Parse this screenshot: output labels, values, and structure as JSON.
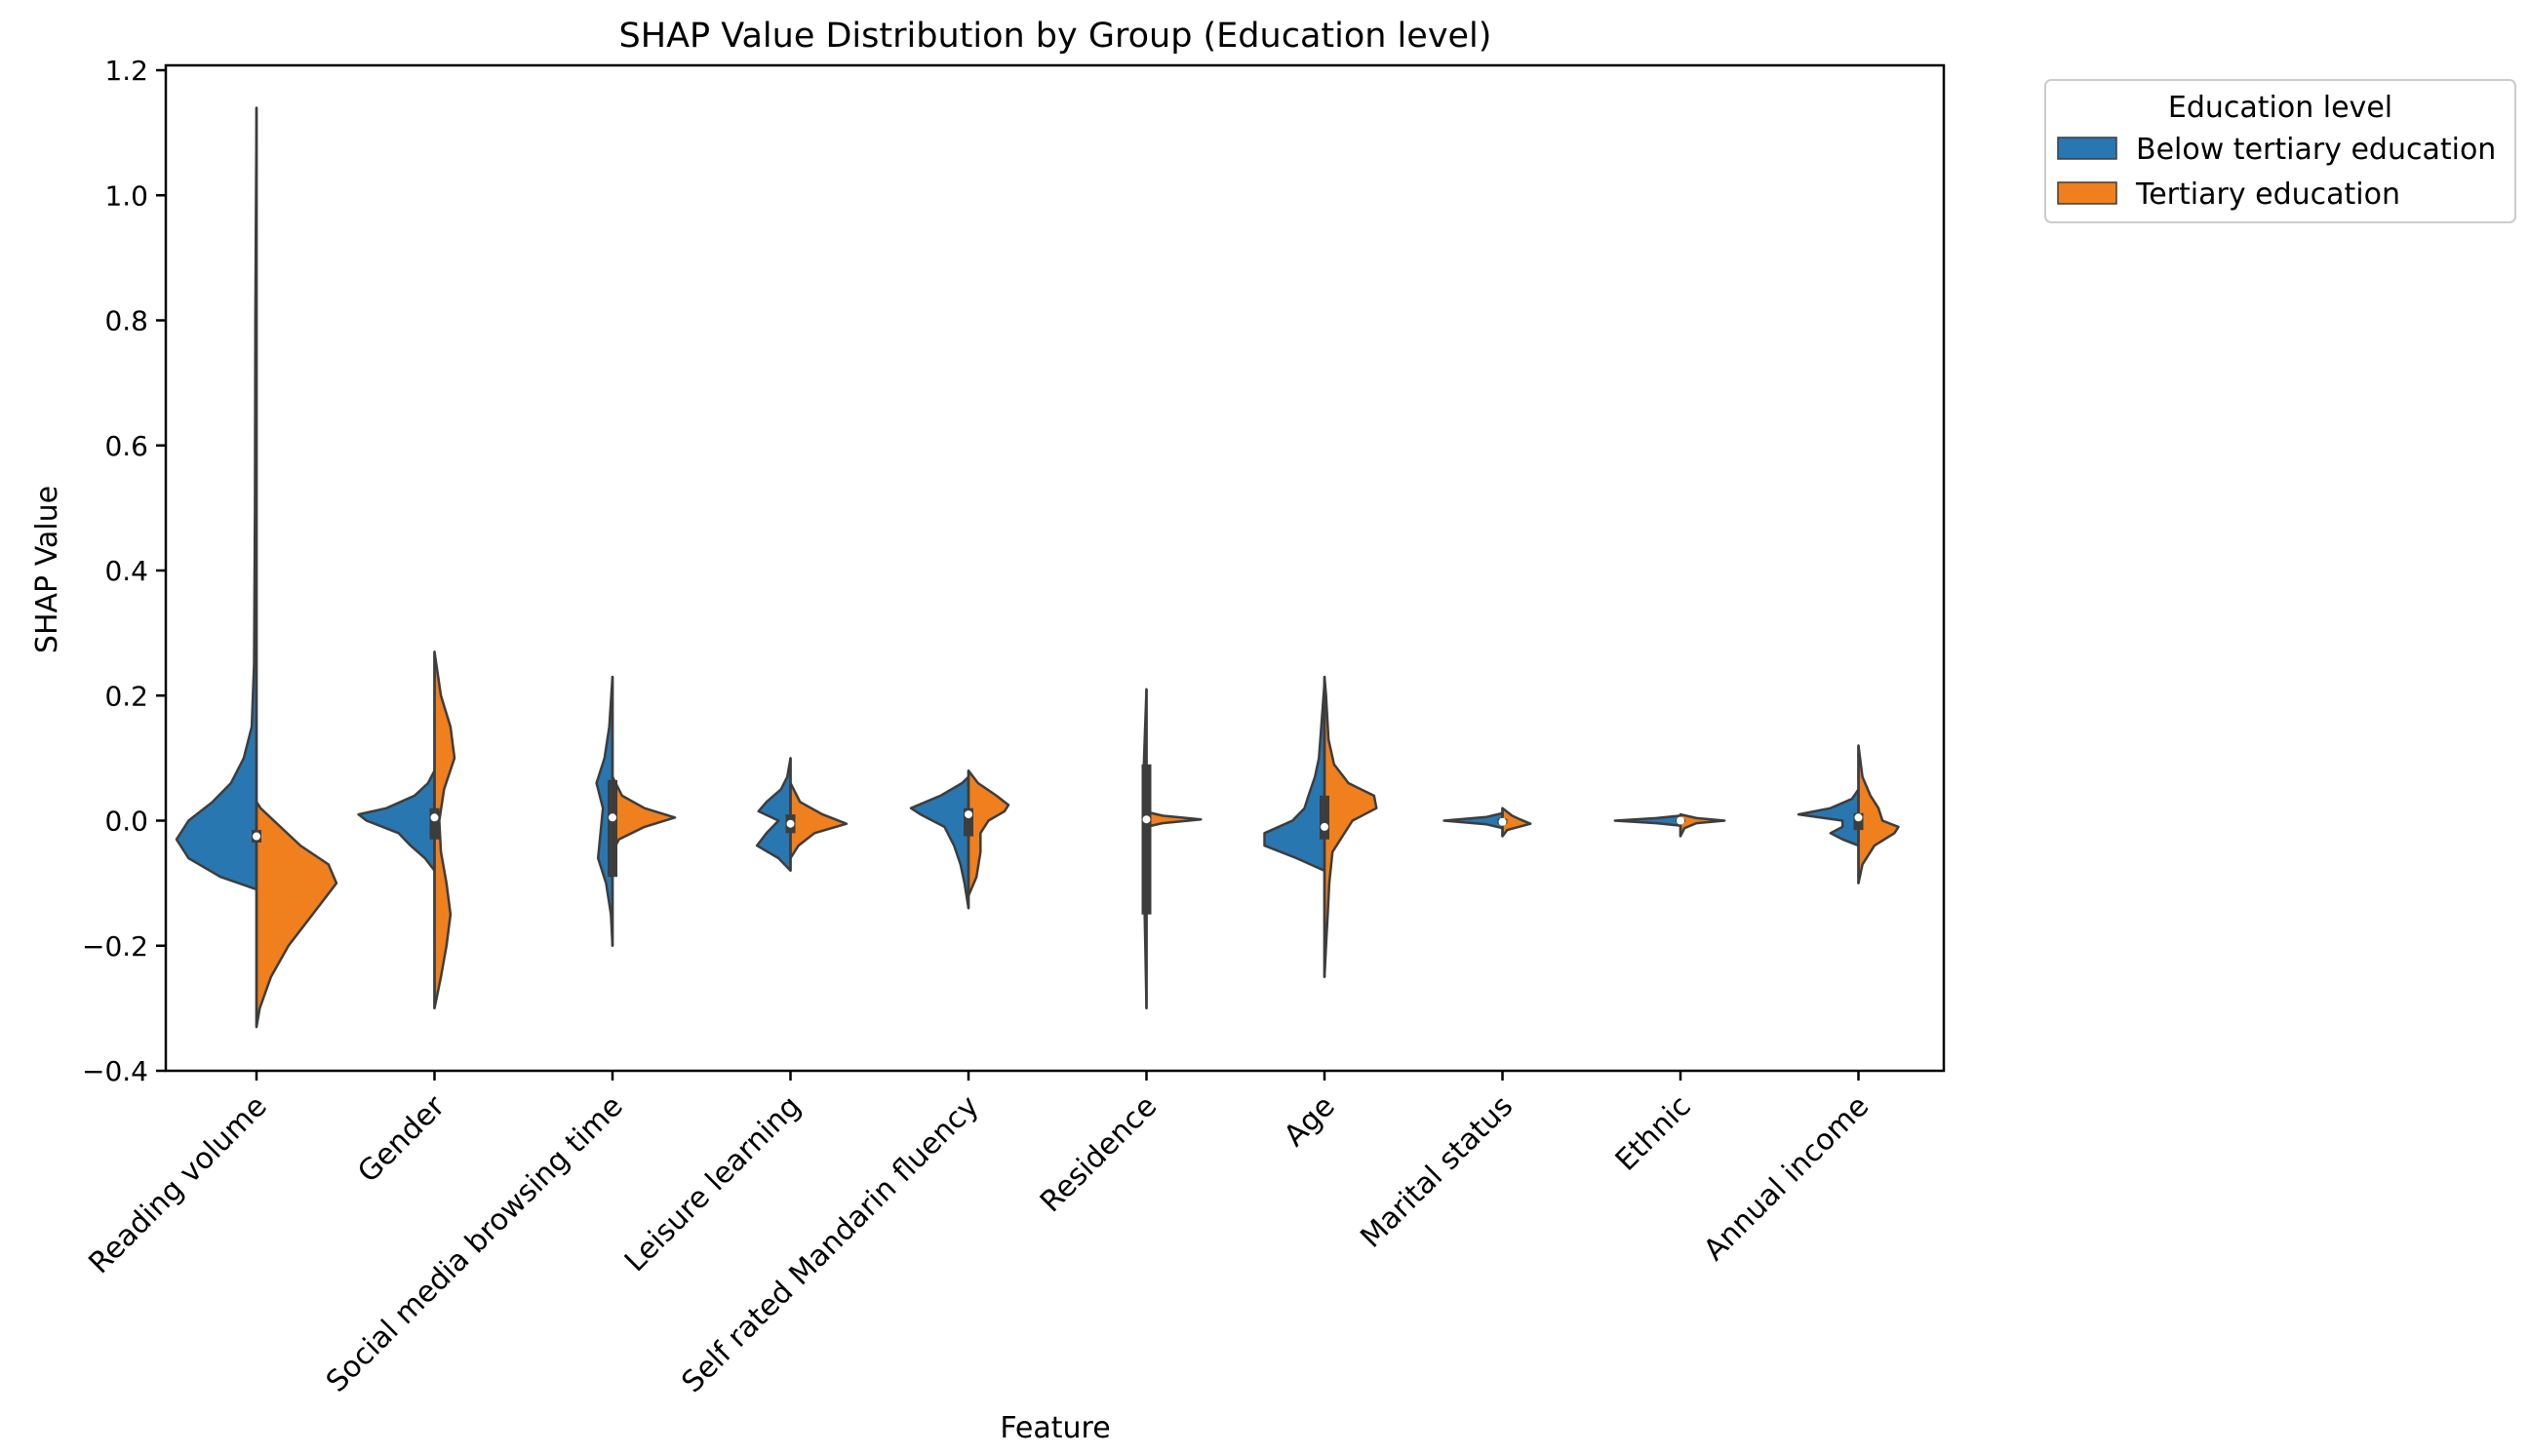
{
  "chart_data": {
    "type": "violin",
    "title": "SHAP Value Distribution by Group (Education level)",
    "xlabel": "Feature",
    "ylabel": "SHAP Value",
    "ylim": [
      -0.4,
      1.2
    ],
    "yticks": [
      -0.4,
      -0.2,
      0.0,
      0.2,
      0.4,
      0.6,
      0.8,
      1.0,
      1.2
    ],
    "ytick_labels": [
      "−0.4",
      "−0.2",
      "0.0",
      "0.2",
      "0.4",
      "0.6",
      "0.8",
      "1.0",
      "1.2"
    ],
    "legend": {
      "title": "Education level",
      "position": "outside-top-right",
      "entries": [
        {
          "label": "Below tertiary education",
          "color": "#2877b0"
        },
        {
          "label": "Tertiary education",
          "color": "#f07f1d"
        }
      ]
    },
    "categories": [
      "Reading volume",
      "Gender",
      "Social media browsing time",
      "Leisure learning",
      "Self rated Mandarin fluency",
      "Residence",
      "Age",
      "Marital status",
      "Ethnic",
      "Annual income"
    ],
    "violins": [
      {
        "feature": "Reading volume",
        "below": [
          [
            -0.11,
            0.0
          ],
          [
            -0.09,
            0.45
          ],
          [
            -0.06,
            0.85
          ],
          [
            -0.03,
            1.0
          ],
          [
            0.0,
            0.85
          ],
          [
            0.03,
            0.55
          ],
          [
            0.06,
            0.32
          ],
          [
            0.1,
            0.16
          ],
          [
            0.15,
            0.06
          ],
          [
            0.25,
            0.03
          ],
          [
            0.5,
            0.02
          ],
          [
            0.8,
            0.015
          ],
          [
            1.14,
            0.0
          ]
        ],
        "tertiary": [
          [
            -0.33,
            0.0
          ],
          [
            -0.3,
            0.04
          ],
          [
            -0.25,
            0.18
          ],
          [
            -0.2,
            0.4
          ],
          [
            -0.15,
            0.7
          ],
          [
            -0.1,
            1.0
          ],
          [
            -0.07,
            0.9
          ],
          [
            -0.04,
            0.55
          ],
          [
            -0.01,
            0.3
          ],
          [
            0.02,
            0.05
          ],
          [
            0.03,
            0.0
          ]
        ],
        "box": {
          "q1": -0.035,
          "median": -0.025,
          "q3": -0.015
        }
      },
      {
        "feature": "Gender",
        "below": [
          [
            -0.08,
            0.0
          ],
          [
            -0.06,
            0.12
          ],
          [
            -0.04,
            0.3
          ],
          [
            -0.02,
            0.45
          ],
          [
            0.0,
            0.85
          ],
          [
            0.01,
            0.95
          ],
          [
            0.02,
            0.6
          ],
          [
            0.04,
            0.25
          ],
          [
            0.06,
            0.08
          ],
          [
            0.08,
            0.0
          ]
        ],
        "tertiary": [
          [
            -0.3,
            0.0
          ],
          [
            -0.25,
            0.08
          ],
          [
            -0.2,
            0.15
          ],
          [
            -0.15,
            0.2
          ],
          [
            -0.1,
            0.15
          ],
          [
            -0.05,
            0.08
          ],
          [
            0.0,
            0.06
          ],
          [
            0.05,
            0.12
          ],
          [
            0.1,
            0.25
          ],
          [
            0.15,
            0.2
          ],
          [
            0.2,
            0.08
          ],
          [
            0.27,
            0.0
          ]
        ],
        "box": {
          "q1": -0.03,
          "median": 0.005,
          "q3": 0.02
        }
      },
      {
        "feature": "Social media browsing time",
        "below": [
          [
            -0.2,
            0.0
          ],
          [
            -0.15,
            0.02
          ],
          [
            -0.1,
            0.08
          ],
          [
            -0.06,
            0.18
          ],
          [
            -0.02,
            0.15
          ],
          [
            0.02,
            0.12
          ],
          [
            0.06,
            0.2
          ],
          [
            0.1,
            0.1
          ],
          [
            0.15,
            0.04
          ],
          [
            0.23,
            0.0
          ]
        ],
        "tertiary": [
          [
            -0.05,
            0.0
          ],
          [
            -0.03,
            0.08
          ],
          [
            -0.01,
            0.4
          ],
          [
            0.005,
            0.78
          ],
          [
            0.02,
            0.4
          ],
          [
            0.04,
            0.12
          ],
          [
            0.07,
            0.0
          ]
        ],
        "box": {
          "q1": -0.09,
          "median": 0.005,
          "q3": 0.065
        }
      },
      {
        "feature": "Leisure learning",
        "below": [
          [
            -0.08,
            0.0
          ],
          [
            -0.06,
            0.15
          ],
          [
            -0.04,
            0.42
          ],
          [
            -0.02,
            0.3
          ],
          [
            0.0,
            0.15
          ],
          [
            0.015,
            0.4
          ],
          [
            0.03,
            0.3
          ],
          [
            0.05,
            0.12
          ],
          [
            0.07,
            0.04
          ],
          [
            0.1,
            0.0
          ]
        ],
        "tertiary": [
          [
            -0.06,
            0.0
          ],
          [
            -0.04,
            0.1
          ],
          [
            -0.02,
            0.3
          ],
          [
            -0.005,
            0.7
          ],
          [
            0.01,
            0.4
          ],
          [
            0.03,
            0.12
          ],
          [
            0.06,
            0.0
          ]
        ],
        "box": {
          "q1": -0.02,
          "median": -0.005,
          "q3": 0.01
        }
      },
      {
        "feature": "Self rated Mandarin fluency",
        "below": [
          [
            -0.14,
            0.0
          ],
          [
            -0.1,
            0.05
          ],
          [
            -0.07,
            0.1
          ],
          [
            -0.04,
            0.18
          ],
          [
            -0.01,
            0.3
          ],
          [
            0.01,
            0.6
          ],
          [
            0.02,
            0.72
          ],
          [
            0.04,
            0.35
          ],
          [
            0.06,
            0.08
          ],
          [
            0.07,
            0.0
          ]
        ],
        "tertiary": [
          [
            -0.12,
            0.0
          ],
          [
            -0.09,
            0.1
          ],
          [
            -0.05,
            0.15
          ],
          [
            -0.02,
            0.15
          ],
          [
            0.0,
            0.25
          ],
          [
            0.015,
            0.45
          ],
          [
            0.025,
            0.5
          ],
          [
            0.04,
            0.35
          ],
          [
            0.06,
            0.12
          ],
          [
            0.08,
            0.0
          ]
        ],
        "box": {
          "q1": -0.025,
          "median": 0.01,
          "q3": 0.02
        }
      },
      {
        "feature": "Residence",
        "below": [
          [
            -0.3,
            0.0
          ],
          [
            -0.2,
            0.015
          ],
          [
            -0.1,
            0.03
          ],
          [
            0.0,
            0.045
          ],
          [
            0.1,
            0.03
          ],
          [
            0.21,
            0.0
          ]
        ],
        "tertiary": [
          [
            -0.01,
            0.0
          ],
          [
            -0.004,
            0.2
          ],
          [
            0.002,
            0.68
          ],
          [
            0.008,
            0.2
          ],
          [
            0.014,
            0.0
          ]
        ],
        "box": {
          "q1": -0.15,
          "median": 0.002,
          "q3": 0.09
        }
      },
      {
        "feature": "Age",
        "below": [
          [
            -0.08,
            0.0
          ],
          [
            -0.06,
            0.35
          ],
          [
            -0.04,
            0.75
          ],
          [
            -0.02,
            0.75
          ],
          [
            0.0,
            0.4
          ],
          [
            0.02,
            0.25
          ],
          [
            0.04,
            0.2
          ],
          [
            0.07,
            0.12
          ],
          [
            0.1,
            0.07
          ],
          [
            0.15,
            0.04
          ],
          [
            0.22,
            0.0
          ]
        ],
        "tertiary": [
          [
            -0.25,
            0.0
          ],
          [
            -0.2,
            0.02
          ],
          [
            -0.15,
            0.04
          ],
          [
            -0.1,
            0.06
          ],
          [
            -0.05,
            0.1
          ],
          [
            0.0,
            0.35
          ],
          [
            0.02,
            0.65
          ],
          [
            0.04,
            0.62
          ],
          [
            0.06,
            0.3
          ],
          [
            0.09,
            0.12
          ],
          [
            0.13,
            0.05
          ],
          [
            0.2,
            0.02
          ],
          [
            0.23,
            0.0
          ]
        ],
        "box": {
          "q1": -0.03,
          "median": -0.01,
          "q3": 0.04
        }
      },
      {
        "feature": "Marital status",
        "below": [
          [
            -0.012,
            0.0
          ],
          [
            -0.006,
            0.2
          ],
          [
            0.0,
            0.73
          ],
          [
            0.006,
            0.2
          ],
          [
            0.012,
            0.0
          ]
        ],
        "tertiary": [
          [
            -0.025,
            0.0
          ],
          [
            -0.015,
            0.06
          ],
          [
            -0.005,
            0.35
          ],
          [
            0.002,
            0.22
          ],
          [
            0.008,
            0.12
          ],
          [
            0.02,
            0.0
          ]
        ],
        "box": {
          "q1": -0.005,
          "median": -0.002,
          "q3": 0.003
        }
      },
      {
        "feature": "Ethnic",
        "below": [
          [
            -0.008,
            0.0
          ],
          [
            -0.004,
            0.3
          ],
          [
            0.0,
            0.82
          ],
          [
            0.004,
            0.3
          ],
          [
            0.008,
            0.0
          ]
        ],
        "tertiary": [
          [
            -0.025,
            0.0
          ],
          [
            -0.012,
            0.05
          ],
          [
            -0.004,
            0.2
          ],
          [
            0.0,
            0.55
          ],
          [
            0.004,
            0.2
          ],
          [
            0.01,
            0.0
          ]
        ],
        "box": {
          "q1": -0.002,
          "median": 0.0,
          "q3": 0.002
        }
      },
      {
        "feature": "Annual income",
        "below": [
          [
            -0.04,
            0.0
          ],
          [
            -0.03,
            0.2
          ],
          [
            -0.02,
            0.35
          ],
          [
            -0.01,
            0.2
          ],
          [
            0.0,
            0.2
          ],
          [
            0.01,
            0.75
          ],
          [
            0.02,
            0.35
          ],
          [
            0.035,
            0.08
          ],
          [
            0.05,
            0.0
          ]
        ],
        "tertiary": [
          [
            -0.1,
            0.0
          ],
          [
            -0.07,
            0.05
          ],
          [
            -0.04,
            0.2
          ],
          [
            -0.02,
            0.45
          ],
          [
            -0.01,
            0.5
          ],
          [
            0.0,
            0.3
          ],
          [
            0.02,
            0.25
          ],
          [
            0.04,
            0.15
          ],
          [
            0.07,
            0.05
          ],
          [
            0.12,
            0.0
          ]
        ],
        "box": {
          "q1": -0.015,
          "median": 0.005,
          "q3": 0.012
        }
      }
    ]
  }
}
